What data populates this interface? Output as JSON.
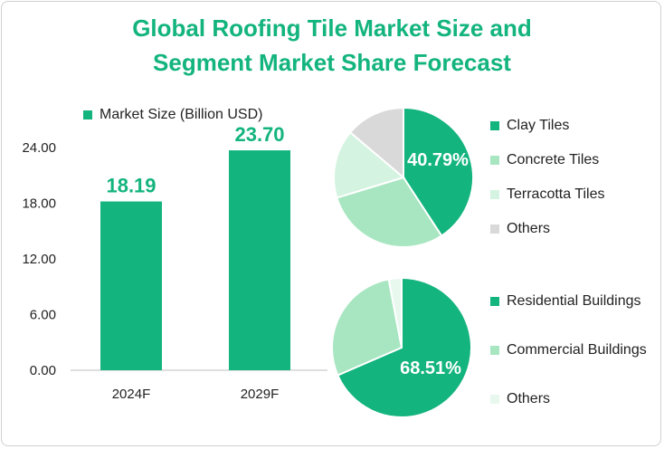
{
  "title": {
    "line1": "Global Roofing Tile Market Size and",
    "line2": "Segment Market Share Forecast"
  },
  "colors": {
    "primary": "#13b47d",
    "light_green": "#a8e6c1",
    "pale_green": "#d4f3e0",
    "very_pale_green": "#e8f8ef",
    "gray": "#d9d9d9"
  },
  "chart_data": [
    {
      "type": "bar",
      "categories": [
        "2024F",
        "2029F"
      ],
      "series": [
        {
          "name": "Market Size (Billion USD)",
          "values": [
            18.19,
            23.7
          ]
        }
      ],
      "data_labels": [
        "18.19",
        "23.70"
      ],
      "ylim": [
        0,
        24
      ],
      "yticks": [
        "0.00",
        "6.00",
        "12.00",
        "18.00",
        "24.00"
      ],
      "legend": "top"
    },
    {
      "type": "pie",
      "labels": [
        "Clay Tiles",
        "Concrete Tiles",
        "Terracotta Tiles",
        "Others"
      ],
      "values": [
        40.79,
        29.5,
        15.9,
        13.81
      ],
      "data_label": "40.79%",
      "legend": "right"
    },
    {
      "type": "pie",
      "labels": [
        "Residential Buildings",
        "Commercial Buildings",
        "Others"
      ],
      "values": [
        68.51,
        28.5,
        2.99
      ],
      "data_label": "68.51%",
      "legend": "right"
    }
  ]
}
